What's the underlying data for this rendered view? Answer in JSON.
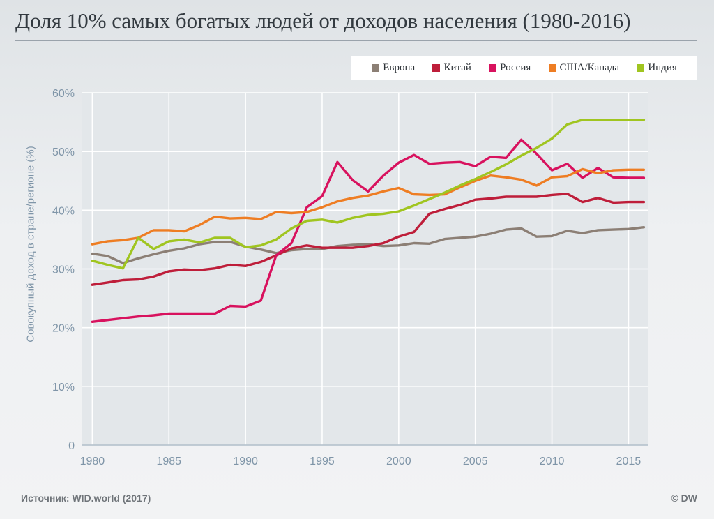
{
  "title": "Доля 10% самых богатых людей от доходов населения (1980-2016)",
  "source": "Источник: WID.world (2017)",
  "credit": "© DW",
  "colors": {
    "background": "#e9ecee",
    "grid": "#ffffff",
    "axis_text": "#7f95a8"
  },
  "chart_data": {
    "type": "line",
    "title": "Доля 10% самых богатых людей от доходов населения (1980-2016)",
    "ylabel": "Совокупный доход в стране/регионе (%)",
    "xlabel": "",
    "xlim": [
      1979.3,
      2016.3
    ],
    "ylim": [
      0,
      60
    ],
    "x_ticks": [
      1980,
      1985,
      1990,
      1995,
      2000,
      2005,
      2010,
      2015
    ],
    "x_tick_labels": [
      "1980",
      "1985",
      "1990",
      "1995",
      "2000",
      "2005",
      "2010",
      "2015"
    ],
    "y_ticks": [
      0,
      10,
      20,
      30,
      40,
      50,
      60
    ],
    "y_tick_labels": [
      "0",
      "10%",
      "20%",
      "30%",
      "40%",
      "50%",
      "60%"
    ],
    "grid": true,
    "legend_position": "top-right",
    "x": [
      1980,
      1981,
      1982,
      1983,
      1984,
      1985,
      1986,
      1987,
      1988,
      1989,
      1990,
      1991,
      1992,
      1993,
      1994,
      1995,
      1996,
      1997,
      1998,
      1999,
      2000,
      2001,
      2002,
      2003,
      2004,
      2005,
      2006,
      2007,
      2008,
      2009,
      2010,
      2011,
      2012,
      2013,
      2014,
      2015,
      2016
    ],
    "series": [
      {
        "name": "Европа",
        "color": "#8c7f75",
        "values": [
          32.6,
          32.2,
          31.0,
          31.8,
          32.5,
          33.1,
          33.5,
          34.2,
          34.6,
          34.6,
          33.8,
          33.3,
          32.7,
          33.2,
          33.4,
          33.4,
          33.9,
          34.1,
          34.2,
          33.9,
          34.0,
          34.4,
          34.3,
          35.1,
          35.3,
          35.5,
          36.0,
          36.7,
          36.9,
          35.5,
          35.6,
          36.5,
          36.1,
          36.6,
          36.7,
          36.8,
          37.1
        ]
      },
      {
        "name": "Китай",
        "color": "#be1e3a",
        "values": [
          27.3,
          27.7,
          28.1,
          28.2,
          28.7,
          29.6,
          29.9,
          29.8,
          30.1,
          30.7,
          30.5,
          31.2,
          32.3,
          33.5,
          34.0,
          33.6,
          33.6,
          33.6,
          33.9,
          34.4,
          35.5,
          36.3,
          39.4,
          40.2,
          40.9,
          41.8,
          42.0,
          42.3,
          42.3,
          42.3,
          42.6,
          42.8,
          41.4,
          42.1,
          41.3,
          41.4,
          41.4
        ]
      },
      {
        "name": "Россия",
        "color": "#d8125e",
        "values": [
          21.0,
          21.3,
          21.6,
          21.9,
          22.1,
          22.4,
          22.4,
          22.4,
          22.4,
          23.7,
          23.6,
          24.6,
          32.3,
          34.4,
          40.5,
          42.4,
          48.2,
          45.1,
          43.2,
          45.9,
          48.1,
          49.4,
          47.9,
          48.1,
          48.2,
          47.5,
          49.1,
          48.9,
          52.0,
          49.6,
          46.8,
          47.9,
          45.5,
          47.2,
          45.6,
          45.5,
          45.5
        ]
      },
      {
        "name": "США/Канада",
        "color": "#ee7d23",
        "values": [
          34.2,
          34.7,
          34.9,
          35.3,
          36.6,
          36.6,
          36.4,
          37.5,
          38.9,
          38.6,
          38.7,
          38.5,
          39.7,
          39.5,
          39.7,
          40.5,
          41.5,
          42.1,
          42.5,
          43.2,
          43.8,
          42.7,
          42.6,
          42.7,
          43.9,
          45.0,
          45.9,
          45.6,
          45.2,
          44.2,
          45.6,
          45.8,
          47.0,
          46.3,
          46.8,
          46.9,
          46.9
        ]
      },
      {
        "name": "Индия",
        "color": "#a0c520",
        "values": [
          31.4,
          30.7,
          30.1,
          35.3,
          33.4,
          34.7,
          35.0,
          34.5,
          35.3,
          35.3,
          33.7,
          34.0,
          35.0,
          36.9,
          38.2,
          38.4,
          37.9,
          38.7,
          39.2,
          39.4,
          39.8,
          40.8,
          41.9,
          43.0,
          44.2,
          45.3,
          46.5,
          47.8,
          49.3,
          50.6,
          52.2,
          54.6,
          55.4,
          55.4,
          55.4,
          55.4,
          55.4
        ]
      }
    ]
  }
}
